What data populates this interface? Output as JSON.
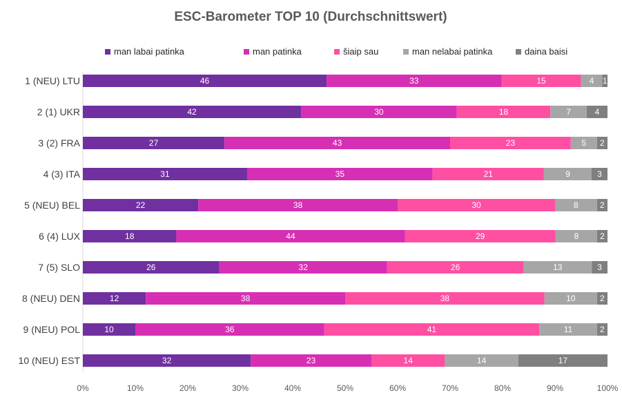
{
  "chart_data": {
    "type": "bar",
    "orientation": "horizontal",
    "stacked": "percent",
    "title": "ESC-Barometer TOP 10 (Durchschnittswert)",
    "categories": [
      "1 (NEU) LTU",
      "2 (1) UKR",
      "3 (2) FRA",
      "4 (3) ITA",
      "5 (NEU) BEL",
      "6 (4) LUX",
      "7 (5) SLO",
      "8 (NEU) DEN",
      "9 (NEU) POL",
      "10 (NEU) EST"
    ],
    "series": [
      {
        "name": "man labai patinka",
        "color": "#7030A0",
        "values": [
          46,
          42,
          27,
          31,
          22,
          18,
          26,
          12,
          10,
          32
        ]
      },
      {
        "name": "man patinka",
        "color": "#D62FB4",
        "values": [
          33,
          30,
          43,
          35,
          38,
          44,
          32,
          38,
          36,
          23
        ]
      },
      {
        "name": "šiaip sau",
        "color": "#FF4FA3",
        "values": [
          15,
          18,
          23,
          21,
          30,
          29,
          26,
          38,
          41,
          14
        ]
      },
      {
        "name": "man nelabai patinka",
        "color": "#A6A6A6",
        "values": [
          4,
          7,
          5,
          9,
          8,
          8,
          13,
          10,
          11,
          14
        ]
      },
      {
        "name": "daina baisi",
        "color": "#7F7F7F",
        "values": [
          1,
          4,
          2,
          3,
          2,
          2,
          3,
          2,
          2,
          17
        ]
      }
    ],
    "x_ticks": [
      "0%",
      "10%",
      "20%",
      "30%",
      "40%",
      "50%",
      "60%",
      "70%",
      "80%",
      "90%",
      "100%"
    ],
    "xlim": [
      0,
      100
    ],
    "legend": "top",
    "grid": false
  }
}
